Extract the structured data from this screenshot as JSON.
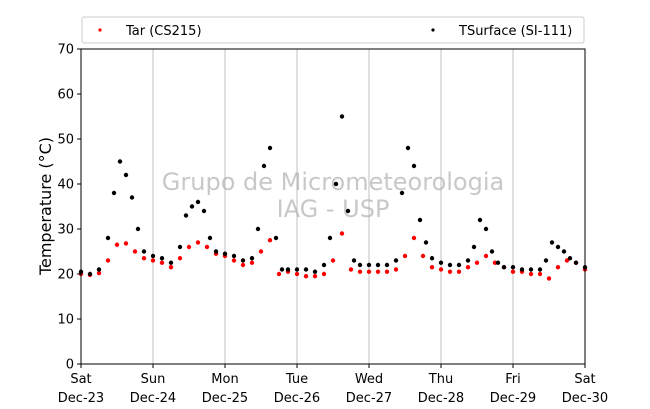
{
  "watermark": [
    "Grupo de Micrometeorologia",
    "IAG - USP"
  ],
  "chart_data": {
    "type": "scatter",
    "ylabel": "Temperature (°C)",
    "ylim": [
      0,
      70
    ],
    "yticks": [
      0,
      10,
      20,
      30,
      40,
      50,
      60,
      70
    ],
    "xlim": [
      "2017-12-23T00:00",
      "2017-12-30T00:00"
    ],
    "xticks": [
      {
        "day": "Sat",
        "date": "Dec-23"
      },
      {
        "day": "Sun",
        "date": "Dec-24"
      },
      {
        "day": "Mon",
        "date": "Dec-25"
      },
      {
        "day": "Tue",
        "date": "Dec-26"
      },
      {
        "day": "Wed",
        "date": "Dec-27"
      },
      {
        "day": "Thu",
        "date": "Dec-28"
      },
      {
        "day": "Fri",
        "date": "Dec-29"
      },
      {
        "day": "Sat",
        "date": "Dec-30"
      }
    ],
    "grid": "vertical",
    "legend": "top (above plot)",
    "series": [
      {
        "name": "Tar (CS215)",
        "color": "#ff0000",
        "x": [
          "2017-12-23T00:00",
          "2017-12-23T03:00",
          "2017-12-23T06:00",
          "2017-12-23T09:00",
          "2017-12-23T12:00",
          "2017-12-23T15:00",
          "2017-12-23T18:00",
          "2017-12-23T21:00",
          "2017-12-24T00:00",
          "2017-12-24T03:00",
          "2017-12-24T06:00",
          "2017-12-24T09:00",
          "2017-12-24T12:00",
          "2017-12-24T15:00",
          "2017-12-24T18:00",
          "2017-12-24T21:00",
          "2017-12-25T00:00",
          "2017-12-25T03:00",
          "2017-12-25T06:00",
          "2017-12-25T09:00",
          "2017-12-25T12:00",
          "2017-12-25T15:00",
          "2017-12-25T18:00",
          "2017-12-25T21:00",
          "2017-12-26T00:00",
          "2017-12-26T03:00",
          "2017-12-26T06:00",
          "2017-12-26T09:00",
          "2017-12-26T12:00",
          "2017-12-26T15:00",
          "2017-12-26T18:00",
          "2017-12-26T21:00",
          "2017-12-27T00:00",
          "2017-12-27T03:00",
          "2017-12-27T06:00",
          "2017-12-27T09:00",
          "2017-12-27T12:00",
          "2017-12-27T15:00",
          "2017-12-27T18:00",
          "2017-12-27T21:00",
          "2017-12-28T00:00",
          "2017-12-28T03:00",
          "2017-12-28T06:00",
          "2017-12-28T09:00",
          "2017-12-28T12:00",
          "2017-12-28T15:00",
          "2017-12-28T18:00",
          "2017-12-28T21:00",
          "2017-12-29T00:00",
          "2017-12-29T03:00",
          "2017-12-29T06:00",
          "2017-12-29T09:00",
          "2017-12-29T12:00",
          "2017-12-29T15:00",
          "2017-12-29T18:00",
          "2017-12-29T21:00",
          "2017-12-30T00:00"
        ],
        "y": [
          20.0,
          19.8,
          20.2,
          23.0,
          26.5,
          26.8,
          25.0,
          23.5,
          23.0,
          22.5,
          21.5,
          23.5,
          26.0,
          27.0,
          26.0,
          24.5,
          24.0,
          23.0,
          22.0,
          22.5,
          25.0,
          27.5,
          20.0,
          20.5,
          20.0,
          19.5,
          19.5,
          20.0,
          23.0,
          29.0,
          21.0,
          20.5,
          20.5,
          20.5,
          20.5,
          21.0,
          24.0,
          28.0,
          24.0,
          21.5,
          21.0,
          20.5,
          20.5,
          21.5,
          22.5,
          24.0,
          22.5,
          21.5,
          20.5,
          20.5,
          20.0,
          20.0,
          19.0,
          21.5,
          23.0,
          22.5,
          21.0
        ]
      },
      {
        "name": "TSurface (SI-111)",
        "color": "#000000",
        "x": [
          "2017-12-23T00:00",
          "2017-12-23T03:00",
          "2017-12-23T06:00",
          "2017-12-23T09:00",
          "2017-12-23T11:00",
          "2017-12-23T13:00",
          "2017-12-23T15:00",
          "2017-12-23T17:00",
          "2017-12-23T19:00",
          "2017-12-23T21:00",
          "2017-12-24T00:00",
          "2017-12-24T03:00",
          "2017-12-24T06:00",
          "2017-12-24T09:00",
          "2017-12-24T11:00",
          "2017-12-24T13:00",
          "2017-12-24T15:00",
          "2017-12-24T17:00",
          "2017-12-24T19:00",
          "2017-12-24T21:00",
          "2017-12-25T00:00",
          "2017-12-25T03:00",
          "2017-12-25T06:00",
          "2017-12-25T09:00",
          "2017-12-25T11:00",
          "2017-12-25T13:00",
          "2017-12-25T15:00",
          "2017-12-25T17:00",
          "2017-12-25T19:00",
          "2017-12-25T21:00",
          "2017-12-26T00:00",
          "2017-12-26T03:00",
          "2017-12-26T06:00",
          "2017-12-26T09:00",
          "2017-12-26T11:00",
          "2017-12-26T13:00",
          "2017-12-26T15:00",
          "2017-12-26T17:00",
          "2017-12-26T19:00",
          "2017-12-26T21:00",
          "2017-12-27T00:00",
          "2017-12-27T03:00",
          "2017-12-27T06:00",
          "2017-12-27T09:00",
          "2017-12-27T11:00",
          "2017-12-27T13:00",
          "2017-12-27T15:00",
          "2017-12-27T17:00",
          "2017-12-27T19:00",
          "2017-12-27T21:00",
          "2017-12-28T00:00",
          "2017-12-28T03:00",
          "2017-12-28T06:00",
          "2017-12-28T09:00",
          "2017-12-28T11:00",
          "2017-12-28T13:00",
          "2017-12-28T15:00",
          "2017-12-28T17:00",
          "2017-12-28T19:00",
          "2017-12-28T21:00",
          "2017-12-29T00:00",
          "2017-12-29T03:00",
          "2017-12-29T06:00",
          "2017-12-29T09:00",
          "2017-12-29T11:00",
          "2017-12-29T13:00",
          "2017-12-29T15:00",
          "2017-12-29T17:00",
          "2017-12-29T19:00",
          "2017-12-29T21:00",
          "2017-12-30T00:00"
        ],
        "y": [
          20.5,
          20.0,
          21.0,
          28.0,
          38.0,
          45.0,
          42.0,
          37.0,
          30.0,
          25.0,
          24.0,
          23.5,
          22.5,
          26.0,
          33.0,
          35.0,
          36.0,
          34.0,
          28.0,
          25.0,
          24.5,
          24.0,
          23.0,
          23.5,
          30.0,
          44.0,
          48.0,
          28.0,
          21.0,
          21.0,
          21.0,
          21.0,
          20.5,
          22.0,
          28.0,
          40.0,
          55.0,
          34.0,
          23.0,
          22.0,
          22.0,
          22.0,
          22.0,
          23.0,
          38.0,
          48.0,
          44.0,
          32.0,
          27.0,
          23.5,
          22.5,
          22.0,
          22.0,
          23.0,
          26.0,
          32.0,
          30.0,
          25.0,
          22.5,
          21.5,
          21.5,
          21.0,
          21.0,
          21.0,
          23.0,
          27.0,
          26.0,
          25.0,
          23.5,
          22.5,
          21.5
        ]
      }
    ]
  }
}
